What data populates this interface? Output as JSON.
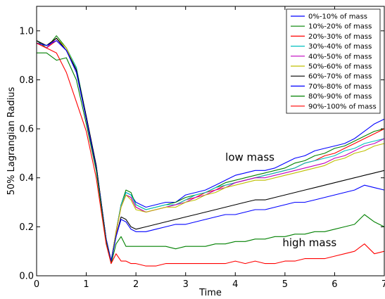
{
  "chart_data": {
    "type": "line",
    "title": "",
    "xlabel": "Time",
    "ylabel": "50% Lagrangian Radius",
    "xlim": [
      0,
      7
    ],
    "ylim": [
      0,
      1.1
    ],
    "xticks": [
      "0",
      "1",
      "2",
      "3",
      "4",
      "5",
      "6",
      "7"
    ],
    "yticks": [
      "0.0",
      "0.2",
      "0.4",
      "0.6",
      "0.8",
      "1.0"
    ],
    "grid": false,
    "legend_position": "top-right",
    "annotations": [
      {
        "text": "low mass",
        "x": 3.8,
        "y": 0.47
      },
      {
        "text": "high mass",
        "x": 4.95,
        "y": 0.12
      }
    ],
    "series": [
      {
        "name": "0%-10% of mass",
        "color": "#0000ff",
        "x": [
          0,
          0.2,
          0.4,
          0.6,
          0.8,
          1.0,
          1.2,
          1.4,
          1.5,
          1.6,
          1.7,
          1.8,
          1.9,
          2.0,
          2.2,
          2.4,
          2.6,
          2.8,
          3.0,
          3.2,
          3.4,
          3.6,
          3.8,
          4.0,
          4.2,
          4.4,
          4.6,
          4.8,
          5.0,
          5.2,
          5.4,
          5.6,
          5.8,
          6.0,
          6.2,
          6.4,
          6.6,
          6.8,
          7.0
        ],
        "y": [
          0.95,
          0.94,
          0.97,
          0.92,
          0.84,
          0.65,
          0.45,
          0.15,
          0.06,
          0.18,
          0.29,
          0.34,
          0.33,
          0.3,
          0.28,
          0.29,
          0.3,
          0.3,
          0.33,
          0.34,
          0.35,
          0.37,
          0.39,
          0.41,
          0.42,
          0.43,
          0.43,
          0.44,
          0.46,
          0.48,
          0.49,
          0.51,
          0.52,
          0.53,
          0.54,
          0.56,
          0.59,
          0.62,
          0.64
        ]
      },
      {
        "name": "10%-20% of mass",
        "color": "#008000",
        "x": [
          0,
          0.2,
          0.4,
          0.6,
          0.8,
          1.0,
          1.2,
          1.4,
          1.5,
          1.6,
          1.7,
          1.8,
          1.9,
          2.0,
          2.2,
          2.4,
          2.6,
          2.8,
          3.0,
          3.2,
          3.4,
          3.6,
          3.8,
          4.0,
          4.2,
          4.4,
          4.6,
          4.8,
          5.0,
          5.2,
          5.4,
          5.6,
          5.8,
          6.0,
          6.2,
          6.4,
          6.6,
          6.8,
          7.0
        ],
        "y": [
          0.96,
          0.93,
          0.98,
          0.93,
          0.85,
          0.65,
          0.45,
          0.15,
          0.06,
          0.18,
          0.29,
          0.35,
          0.34,
          0.29,
          0.27,
          0.28,
          0.29,
          0.3,
          0.32,
          0.33,
          0.34,
          0.36,
          0.38,
          0.39,
          0.4,
          0.41,
          0.42,
          0.43,
          0.44,
          0.46,
          0.47,
          0.49,
          0.5,
          0.52,
          0.53,
          0.55,
          0.57,
          0.59,
          0.6
        ]
      },
      {
        "name": "20%-30% of mass",
        "color": "#ff0000",
        "x": [
          0,
          0.2,
          0.4,
          0.6,
          0.8,
          1.0,
          1.2,
          1.4,
          1.5,
          1.6,
          1.7,
          1.8,
          1.9,
          2.0,
          2.2,
          2.4,
          2.6,
          2.8,
          3.0,
          3.2,
          3.4,
          3.6,
          3.8,
          4.0,
          4.2,
          4.4,
          4.6,
          4.8,
          5.0,
          5.2,
          5.4,
          5.6,
          5.8,
          6.0,
          6.2,
          6.4,
          6.6,
          6.8,
          7.0
        ],
        "y": [
          0.95,
          0.93,
          0.96,
          0.92,
          0.84,
          0.64,
          0.44,
          0.14,
          0.06,
          0.17,
          0.29,
          0.33,
          0.32,
          0.28,
          0.26,
          0.27,
          0.28,
          0.29,
          0.31,
          0.32,
          0.34,
          0.35,
          0.37,
          0.38,
          0.39,
          0.4,
          0.41,
          0.42,
          0.43,
          0.44,
          0.46,
          0.47,
          0.49,
          0.5,
          0.52,
          0.54,
          0.56,
          0.58,
          0.6
        ]
      },
      {
        "name": "30%-40% of mass",
        "color": "#00bfbf",
        "x": [
          0,
          0.2,
          0.4,
          0.6,
          0.8,
          1.0,
          1.2,
          1.4,
          1.5,
          1.6,
          1.7,
          1.8,
          1.9,
          2.0,
          2.2,
          2.4,
          2.6,
          2.8,
          3.0,
          3.2,
          3.4,
          3.6,
          3.8,
          4.0,
          4.2,
          4.4,
          4.6,
          4.8,
          5.0,
          5.2,
          5.4,
          5.6,
          5.8,
          6.0,
          6.2,
          6.4,
          6.6,
          6.8,
          7.0
        ],
        "y": [
          0.95,
          0.94,
          0.97,
          0.93,
          0.85,
          0.65,
          0.45,
          0.15,
          0.06,
          0.18,
          0.29,
          0.34,
          0.33,
          0.29,
          0.27,
          0.28,
          0.29,
          0.29,
          0.31,
          0.33,
          0.34,
          0.36,
          0.37,
          0.38,
          0.39,
          0.4,
          0.41,
          0.42,
          0.43,
          0.44,
          0.46,
          0.47,
          0.48,
          0.49,
          0.51,
          0.52,
          0.54,
          0.55,
          0.56
        ]
      },
      {
        "name": "40%-50% of mass",
        "color": "#bf00bf",
        "x": [
          0,
          0.2,
          0.4,
          0.6,
          0.8,
          1.0,
          1.2,
          1.4,
          1.5,
          1.6,
          1.7,
          1.8,
          1.9,
          2.0,
          2.2,
          2.4,
          2.6,
          2.8,
          3.0,
          3.2,
          3.4,
          3.6,
          3.8,
          4.0,
          4.2,
          4.4,
          4.6,
          4.8,
          5.0,
          5.2,
          5.4,
          5.6,
          5.8,
          6.0,
          6.2,
          6.4,
          6.6,
          6.8,
          7.0
        ],
        "y": [
          0.95,
          0.93,
          0.97,
          0.92,
          0.84,
          0.65,
          0.45,
          0.15,
          0.06,
          0.18,
          0.28,
          0.33,
          0.32,
          0.28,
          0.26,
          0.27,
          0.28,
          0.29,
          0.3,
          0.32,
          0.33,
          0.35,
          0.36,
          0.38,
          0.39,
          0.4,
          0.4,
          0.41,
          0.42,
          0.43,
          0.44,
          0.45,
          0.46,
          0.48,
          0.49,
          0.51,
          0.53,
          0.54,
          0.56
        ]
      },
      {
        "name": "50%-60% of mass",
        "color": "#bfbf00",
        "x": [
          0,
          0.2,
          0.4,
          0.6,
          0.8,
          1.0,
          1.2,
          1.4,
          1.5,
          1.6,
          1.7,
          1.8,
          1.9,
          2.0,
          2.2,
          2.4,
          2.6,
          2.8,
          3.0,
          3.2,
          3.4,
          3.6,
          3.8,
          4.0,
          4.2,
          4.4,
          4.6,
          4.8,
          5.0,
          5.2,
          5.4,
          5.6,
          5.8,
          6.0,
          6.2,
          6.4,
          6.6,
          6.8,
          7.0
        ],
        "y": [
          0.95,
          0.94,
          0.97,
          0.93,
          0.84,
          0.65,
          0.45,
          0.15,
          0.06,
          0.18,
          0.28,
          0.33,
          0.31,
          0.27,
          0.26,
          0.27,
          0.28,
          0.28,
          0.3,
          0.31,
          0.33,
          0.34,
          0.36,
          0.37,
          0.38,
          0.39,
          0.39,
          0.4,
          0.41,
          0.42,
          0.43,
          0.44,
          0.45,
          0.47,
          0.48,
          0.5,
          0.51,
          0.53,
          0.54
        ]
      },
      {
        "name": "60%-70% of mass",
        "color": "#000000",
        "x": [
          0,
          0.2,
          0.4,
          0.6,
          0.8,
          1.0,
          1.2,
          1.4,
          1.5,
          1.6,
          1.7,
          1.8,
          1.9,
          2.0,
          2.2,
          2.4,
          2.6,
          2.8,
          3.0,
          3.2,
          3.4,
          3.6,
          3.8,
          4.0,
          4.2,
          4.4,
          4.6,
          4.8,
          5.0,
          5.2,
          5.4,
          5.6,
          5.8,
          6.0,
          6.2,
          6.4,
          6.6,
          6.8,
          7.0
        ],
        "y": [
          0.96,
          0.94,
          0.97,
          0.92,
          0.84,
          0.65,
          0.45,
          0.15,
          0.06,
          0.16,
          0.24,
          0.23,
          0.2,
          0.19,
          0.2,
          0.21,
          0.22,
          0.23,
          0.24,
          0.25,
          0.26,
          0.27,
          0.28,
          0.29,
          0.3,
          0.31,
          0.31,
          0.32,
          0.33,
          0.34,
          0.35,
          0.36,
          0.37,
          0.38,
          0.39,
          0.4,
          0.41,
          0.42,
          0.43
        ]
      },
      {
        "name": "70%-80% of mass",
        "color": "#0000ff",
        "x": [
          0,
          0.2,
          0.4,
          0.6,
          0.8,
          1.0,
          1.2,
          1.4,
          1.5,
          1.6,
          1.7,
          1.8,
          1.9,
          2.0,
          2.2,
          2.4,
          2.6,
          2.8,
          3.0,
          3.2,
          3.4,
          3.6,
          3.8,
          4.0,
          4.2,
          4.4,
          4.6,
          4.8,
          5.0,
          5.2,
          5.4,
          5.6,
          5.8,
          6.0,
          6.2,
          6.4,
          6.6,
          6.8,
          7.0
        ],
        "y": [
          0.95,
          0.94,
          0.96,
          0.92,
          0.83,
          0.64,
          0.44,
          0.15,
          0.06,
          0.16,
          0.23,
          0.22,
          0.19,
          0.18,
          0.18,
          0.19,
          0.2,
          0.21,
          0.21,
          0.22,
          0.23,
          0.24,
          0.25,
          0.25,
          0.26,
          0.27,
          0.27,
          0.28,
          0.29,
          0.3,
          0.3,
          0.31,
          0.32,
          0.33,
          0.34,
          0.35,
          0.37,
          0.36,
          0.35
        ]
      },
      {
        "name": "80%-90% of mass",
        "color": "#008000",
        "x": [
          0,
          0.2,
          0.4,
          0.6,
          0.8,
          1.0,
          1.2,
          1.4,
          1.5,
          1.6,
          1.7,
          1.8,
          1.9,
          2.0,
          2.2,
          2.4,
          2.6,
          2.8,
          3.0,
          3.2,
          3.4,
          3.6,
          3.8,
          4.0,
          4.2,
          4.4,
          4.6,
          4.8,
          5.0,
          5.2,
          5.4,
          5.6,
          5.8,
          6.0,
          6.2,
          6.4,
          6.6,
          6.8,
          7.0
        ],
        "y": [
          0.91,
          0.91,
          0.88,
          0.89,
          0.8,
          0.62,
          0.43,
          0.14,
          0.05,
          0.13,
          0.16,
          0.12,
          0.12,
          0.12,
          0.12,
          0.12,
          0.12,
          0.11,
          0.12,
          0.12,
          0.12,
          0.13,
          0.13,
          0.14,
          0.14,
          0.15,
          0.15,
          0.16,
          0.16,
          0.17,
          0.17,
          0.18,
          0.18,
          0.19,
          0.2,
          0.21,
          0.25,
          0.22,
          0.2
        ]
      },
      {
        "name": "90%-100% of mass",
        "color": "#ff0000",
        "x": [
          0,
          0.2,
          0.4,
          0.6,
          0.8,
          1.0,
          1.2,
          1.4,
          1.5,
          1.6,
          1.7,
          1.8,
          1.9,
          2.0,
          2.2,
          2.4,
          2.6,
          2.8,
          3.0,
          3.2,
          3.4,
          3.6,
          3.8,
          4.0,
          4.2,
          4.4,
          4.6,
          4.8,
          5.0,
          5.2,
          5.4,
          5.6,
          5.8,
          6.0,
          6.2,
          6.4,
          6.6,
          6.8,
          7.0
        ],
        "y": [
          0.95,
          0.93,
          0.91,
          0.83,
          0.71,
          0.59,
          0.4,
          0.13,
          0.05,
          0.09,
          0.06,
          0.06,
          0.05,
          0.05,
          0.04,
          0.04,
          0.05,
          0.05,
          0.05,
          0.05,
          0.05,
          0.05,
          0.05,
          0.06,
          0.05,
          0.06,
          0.05,
          0.05,
          0.06,
          0.06,
          0.07,
          0.07,
          0.07,
          0.08,
          0.09,
          0.1,
          0.13,
          0.09,
          0.1
        ]
      }
    ]
  }
}
